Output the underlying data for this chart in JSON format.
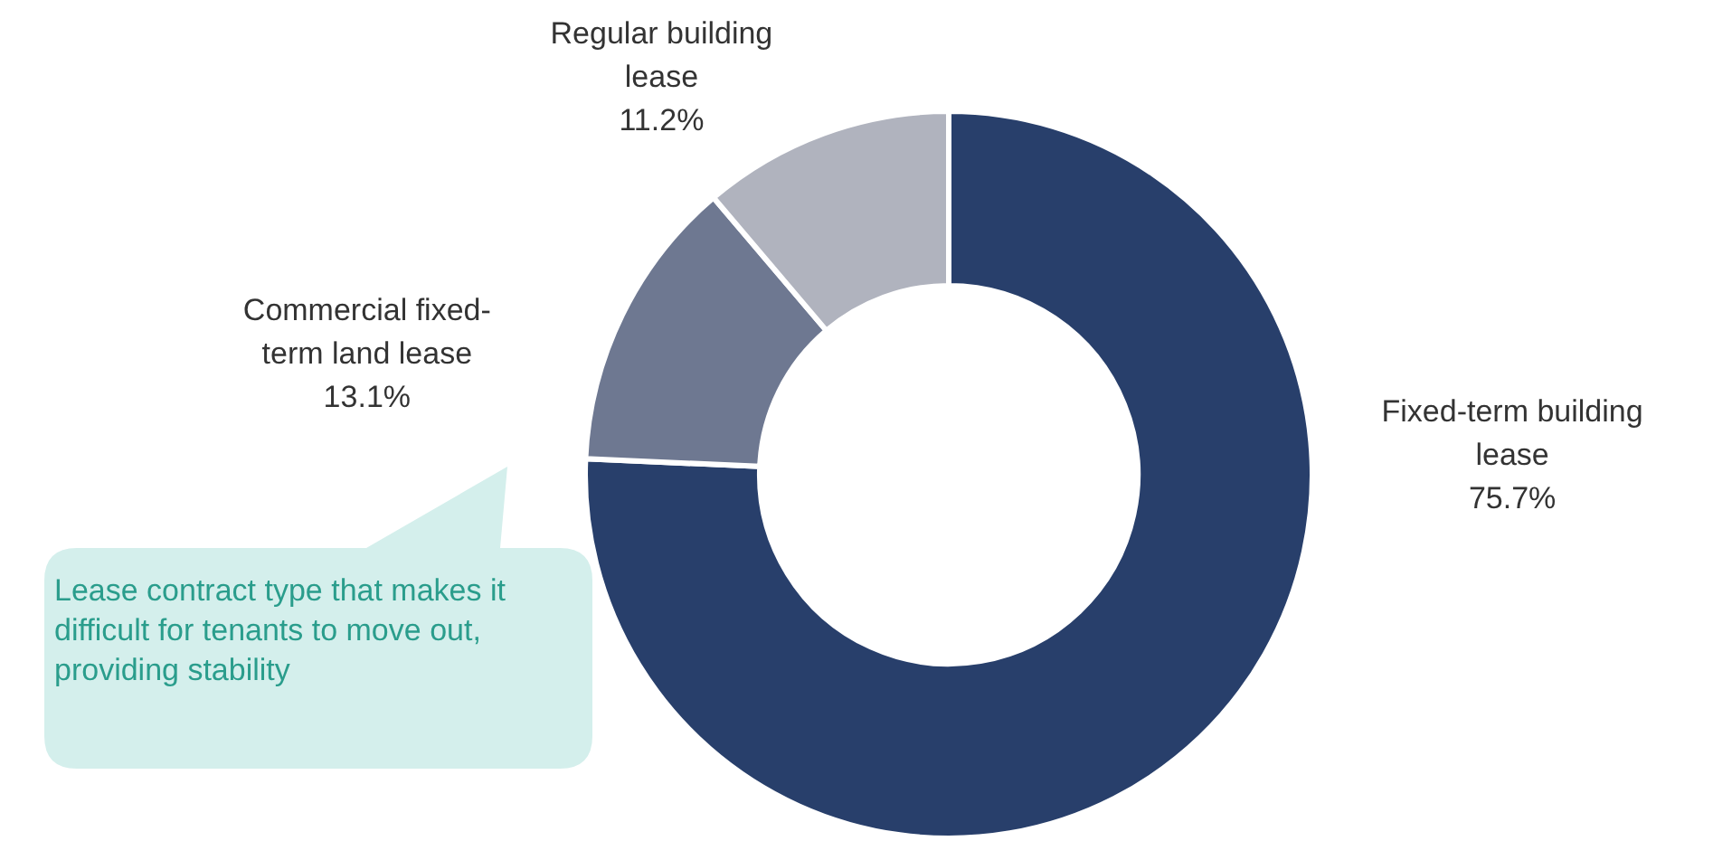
{
  "chart_data": {
    "type": "donut",
    "categories": [
      "Fixed-term building\nlease",
      "Commercial fixed-\nterm land lease",
      "Regular building\nlease"
    ],
    "values": [
      75.7,
      13.1,
      11.2
    ],
    "value_labels": [
      "75.7%",
      "13.1%",
      "11.2%"
    ],
    "colors": [
      "#283f6b",
      "#6e7891",
      "#b0b3be"
    ],
    "legend": false,
    "annotations": [
      "Lease contract type that makes it difficult for tenants to move out, providing stability"
    ]
  }
}
